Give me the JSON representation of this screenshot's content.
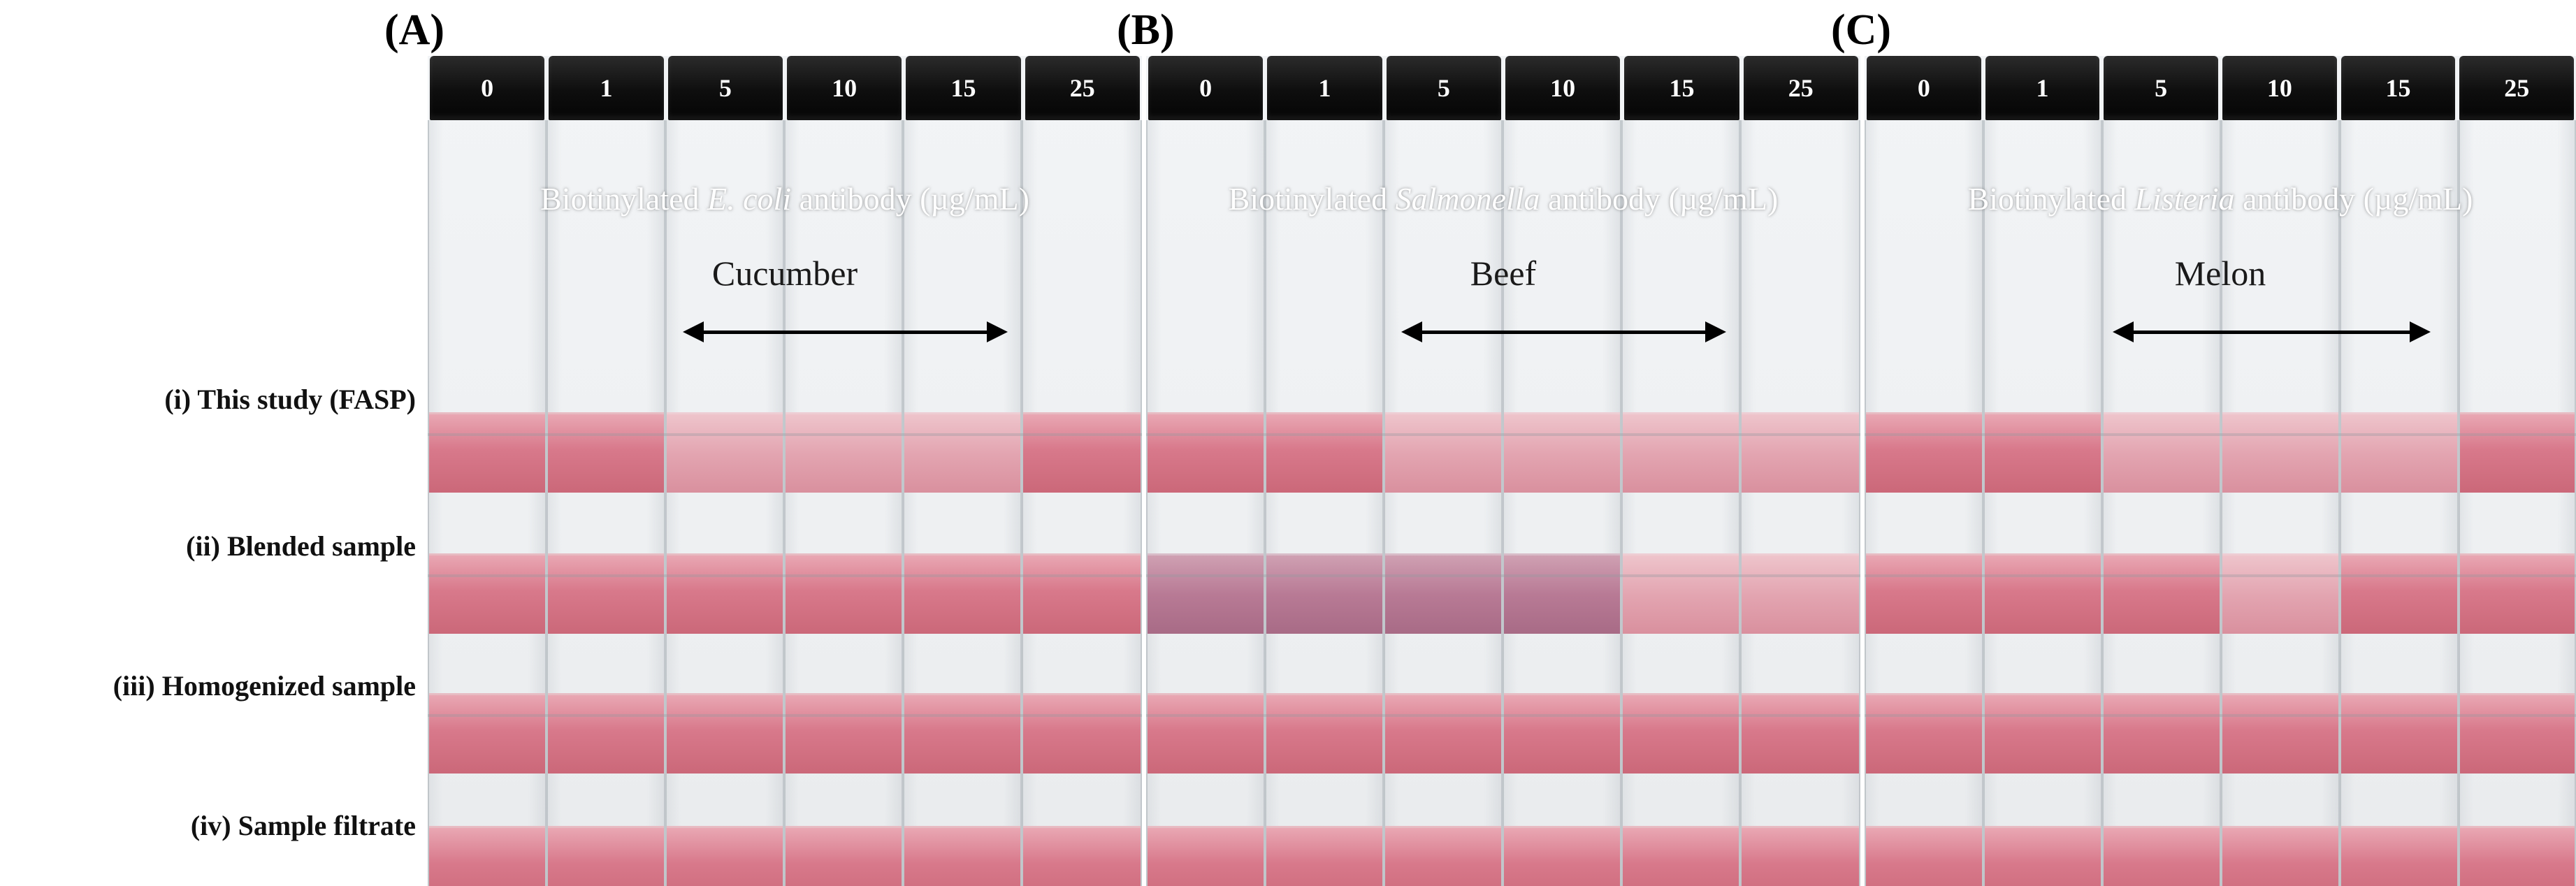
{
  "panels": [
    {
      "label": "(A)",
      "caps": [
        "0",
        "1",
        "5",
        "10",
        "15",
        "25"
      ],
      "antibody_prefix": "Biotinylated ",
      "antibody_name": "E. coli",
      "antibody_suffix": " antibody (µg/mL)",
      "food": "Cucumber"
    },
    {
      "label": "(B)",
      "caps": [
        "0",
        "1",
        "5",
        "10",
        "15",
        "25"
      ],
      "antibody_prefix": "Biotinylated ",
      "antibody_name": "Salmonella",
      "antibody_suffix": " antibody (µg/mL)",
      "food": "Beef"
    },
    {
      "label": "(C)",
      "caps": [
        "0",
        "1",
        "5",
        "10",
        "15",
        "25"
      ],
      "antibody_prefix": "Biotinylated ",
      "antibody_name": "Listeria",
      "antibody_suffix": " antibody (µg/mL)",
      "food": "Melon"
    }
  ],
  "rows": [
    "(i) This study (FASP)",
    "(ii) Blended sample",
    "(iii) Homogenized sample",
    "(iv) Sample filtrate"
  ],
  "colors": {
    "liquid": "#d8798b",
    "liquid_pale": "#e3a5b1",
    "liquid_purple": "#b87a95",
    "cap": "#0e0e0e",
    "background": "#ffffff"
  }
}
